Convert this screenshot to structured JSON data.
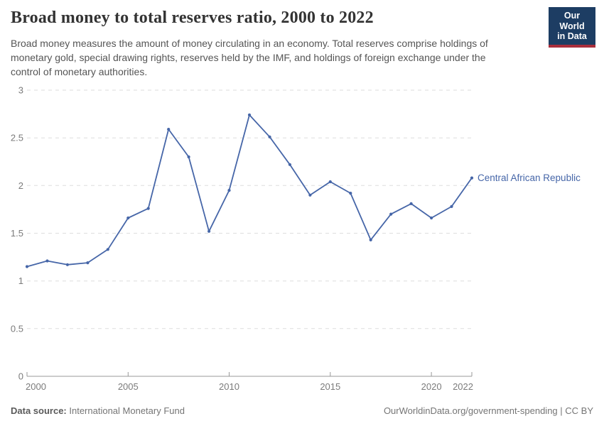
{
  "header": {
    "title": "Broad money to total reserves ratio, 2000 to 2022",
    "subtitle": "Broad money measures the amount of money circulating in an economy. Total reserves comprise holdings of monetary gold, special drawing rights, reserves held by the IMF, and holdings of foreign exchange under the control of monetary authorities.",
    "logo": {
      "line1": "Our World",
      "line2": "in Data",
      "bg_color": "#1d3d63",
      "accent_color": "#a92e3c"
    }
  },
  "chart_data": {
    "type": "line",
    "title": "Broad money to total reserves ratio, 2000 to 2022",
    "xlabel": "",
    "ylabel": "",
    "xlim": [
      2000,
      2022
    ],
    "ylim": [
      0,
      3
    ],
    "xticks": [
      2000,
      2005,
      2010,
      2015,
      2020,
      2022
    ],
    "yticks": [
      0,
      0.5,
      1,
      1.5,
      2,
      2.5,
      3
    ],
    "grid": "horizontal-dashed",
    "legend_position": "end-of-line-label",
    "x": [
      2000,
      2001,
      2002,
      2003,
      2004,
      2005,
      2006,
      2007,
      2008,
      2009,
      2010,
      2011,
      2012,
      2013,
      2014,
      2015,
      2016,
      2017,
      2018,
      2019,
      2020,
      2021,
      2022
    ],
    "series": [
      {
        "name": "Central African Republic",
        "color": "#4666a8",
        "values": [
          1.15,
          1.21,
          1.17,
          1.19,
          1.33,
          1.66,
          1.76,
          2.59,
          2.3,
          1.52,
          1.95,
          2.74,
          2.51,
          2.22,
          1.9,
          2.04,
          1.92,
          1.43,
          1.7,
          1.81,
          1.66,
          1.78,
          2.08
        ]
      }
    ],
    "axis_color": "#999999",
    "grid_color": "#dedede"
  },
  "footer": {
    "source_label": "Data source:",
    "source_value": "International Monetary Fund",
    "attribution": "OurWorldinData.org/government-spending | CC BY"
  }
}
